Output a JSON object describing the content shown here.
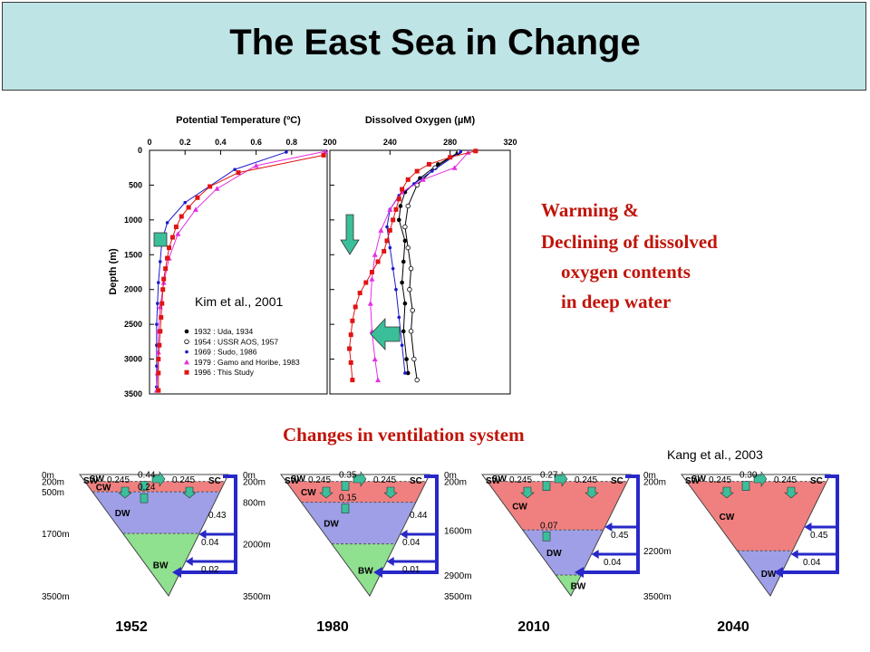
{
  "title": "The East Sea in Change",
  "citations": {
    "kim": "Kim et al., 2001",
    "kang": "Kang et al., 2003"
  },
  "bullets": {
    "line1": "Warming &",
    "line2": "Declining of dissolved",
    "line3": "oxygen contents",
    "line4": "in deep water"
  },
  "ventilation_title": "Changes in ventilation system",
  "colors": {
    "title_bg": "#bfe4e6",
    "red_text": "#c0140a",
    "arrow": "#3bbf9a",
    "cw": "#f08080",
    "dw": "#9f9fe8",
    "bw": "#8fe08f",
    "flow": "#2828c8"
  },
  "chart_data": [
    {
      "type": "line",
      "title": "Potential Temperature (ºC)",
      "xlabel": "Potential Temperature (ºC)",
      "ylabel": "Depth (m)",
      "xlim": [
        0,
        1.0
      ],
      "ylim": [
        0,
        3500
      ],
      "xticks": [
        "0",
        "0.2",
        "0.4",
        "0.6",
        "0.8"
      ],
      "yticks": [
        "0",
        "500",
        "1000",
        "1500",
        "2000",
        "2500",
        "3000",
        "3500"
      ],
      "series": [
        {
          "name": "1969 : Sudo, 1986",
          "color": "#1a1acc",
          "marker": "star",
          "x": [
            0.77,
            0.48,
            0.2,
            0.1,
            0.07,
            0.06,
            0.05,
            0.045,
            0.04,
            0.04,
            0.04,
            0.04
          ],
          "y": [
            25,
            275,
            750,
            1040,
            1300,
            1600,
            1900,
            2200,
            2500,
            2800,
            3100,
            3400
          ]
        },
        {
          "name": "1979 : Gamo and Horibe, 1983",
          "color": "#e22fe2",
          "marker": "triangle",
          "x": [
            0.99,
            0.6,
            0.38,
            0.26,
            0.16,
            0.11,
            0.08,
            0.06,
            0.05,
            0.05,
            0.045,
            0.04
          ],
          "y": [
            15,
            220,
            550,
            850,
            1200,
            1550,
            1900,
            2250,
            2600,
            2900,
            3200,
            3450
          ]
        },
        {
          "name": "1996 : This Study",
          "color": "#e01414",
          "marker": "square",
          "x": [
            0.98,
            0.5,
            0.34,
            0.27,
            0.22,
            0.18,
            0.15,
            0.13,
            0.11,
            0.1,
            0.09,
            0.08,
            0.075,
            0.07,
            0.065,
            0.06,
            0.055,
            0.05,
            0.05,
            0.05
          ],
          "y": [
            70,
            320,
            520,
            680,
            820,
            950,
            1100,
            1250,
            1400,
            1550,
            1700,
            1850,
            2000,
            2200,
            2400,
            2600,
            2800,
            3000,
            3200,
            3450
          ]
        }
      ],
      "legend": [
        "1932 : Uda, 1934",
        "1954 : USSR AOS, 1957",
        "1969 : Sudo, 1986",
        "1979 : Gamo and Horibe, 1983",
        "1996 : This Study"
      ]
    },
    {
      "type": "line",
      "title": "Dissolved Oxygen (µM)",
      "xlabel": "Dissolved Oxygen (µM)",
      "xlim": [
        200,
        320
      ],
      "ylim": [
        0,
        3500
      ],
      "xticks": [
        "200",
        "240",
        "280",
        "320"
      ],
      "series": [
        {
          "name": "1932 : Uda, 1934",
          "color": "#000000",
          "marker": "circle",
          "x": [
            285,
            272,
            260,
            250,
            247,
            246,
            250,
            249,
            248,
            250,
            249,
            251,
            252
          ],
          "y": [
            40,
            200,
            400,
            600,
            800,
            1000,
            1300,
            1600,
            1900,
            2200,
            2600,
            3000,
            3200
          ]
        },
        {
          "name": "1954 : USSR AOS, 1957",
          "color": "#000000",
          "marker": "circle-open",
          "x": [
            286,
            270,
            258,
            252,
            250,
            252,
            254,
            253,
            255,
            254,
            256,
            258
          ],
          "y": [
            20,
            250,
            500,
            800,
            1100,
            1400,
            1700,
            2000,
            2300,
            2600,
            3000,
            3300
          ]
        },
        {
          "name": "1969 : Sudo, 1986",
          "color": "#1a1acc",
          "marker": "star",
          "x": [
            287,
            268,
            256,
            246,
            240,
            238,
            240,
            242,
            244,
            246,
            248,
            250
          ],
          "y": [
            20,
            300,
            480,
            650,
            850,
            1100,
            1400,
            1700,
            2000,
            2400,
            2800,
            3200
          ]
        },
        {
          "name": "1979 : Gamo and Horibe, 1983",
          "color": "#e22fe2",
          "marker": "triangle",
          "x": [
            292,
            283,
            262,
            248,
            240,
            234,
            230,
            228,
            227,
            228,
            230,
            232
          ],
          "y": [
            30,
            250,
            420,
            600,
            850,
            1150,
            1500,
            1850,
            2200,
            2600,
            3000,
            3300
          ]
        },
        {
          "name": "1996 : This Study",
          "color": "#e01414",
          "marker": "square",
          "x": [
            297,
            280,
            266,
            258,
            252,
            248,
            246,
            244,
            242,
            240,
            238,
            236,
            232,
            228,
            224,
            220,
            217,
            215,
            214,
            213,
            214,
            215
          ],
          "y": [
            10,
            100,
            200,
            300,
            420,
            560,
            700,
            850,
            1000,
            1150,
            1300,
            1450,
            1600,
            1750,
            1900,
            2050,
            2250,
            2450,
            2650,
            2850,
            3050,
            3300
          ]
        }
      ]
    },
    {
      "type": "diagram",
      "title": "Changes in ventilation system",
      "panels": [
        {
          "year": "1952",
          "depths": [
            "0m",
            "200m",
            "500m",
            "1700m",
            "3500m"
          ],
          "layers": [
            "SW",
            "CW",
            "DW",
            "BW"
          ],
          "inner_values": [
            "0.44",
            "0.24"
          ],
          "side_values": [
            "0.43",
            "0.04",
            "0.02"
          ],
          "surface_values": [
            "0.245",
            "0.245"
          ],
          "surface_labels": [
            "SW",
            "SC"
          ]
        },
        {
          "year": "1980",
          "depths": [
            "0m",
            "200m",
            "800m",
            "2000m",
            "3500m"
          ],
          "layers": [
            "SW",
            "CW",
            "DW",
            "BW"
          ],
          "inner_values": [
            "0.35",
            "0.15"
          ],
          "side_values": [
            "0.44",
            "0.04",
            "0.01"
          ],
          "surface_values": [
            "0.245",
            "0.245"
          ],
          "surface_labels": [
            "SW",
            "SC"
          ]
        },
        {
          "year": "2010",
          "depths": [
            "0m",
            "200m",
            "1600m",
            "2900m",
            "3500m"
          ],
          "layers": [
            "SW",
            "CW",
            "DW",
            "BW"
          ],
          "inner_values": [
            "0.27",
            "0.07"
          ],
          "side_values": [
            "0.45",
            "0.04"
          ],
          "surface_values": [
            "0.245",
            "0.245"
          ],
          "surface_labels": [
            "SW",
            "SC"
          ]
        },
        {
          "year": "2040",
          "depths": [
            "0m",
            "200m",
            "2200m",
            "3500m"
          ],
          "layers": [
            "SW",
            "CW",
            "DW"
          ],
          "inner_values": [
            "0.30"
          ],
          "side_values": [
            "0.45",
            "0.04"
          ],
          "surface_values": [
            "0.245",
            "0.245"
          ],
          "surface_labels": [
            "SW",
            "SC"
          ]
        }
      ]
    }
  ]
}
